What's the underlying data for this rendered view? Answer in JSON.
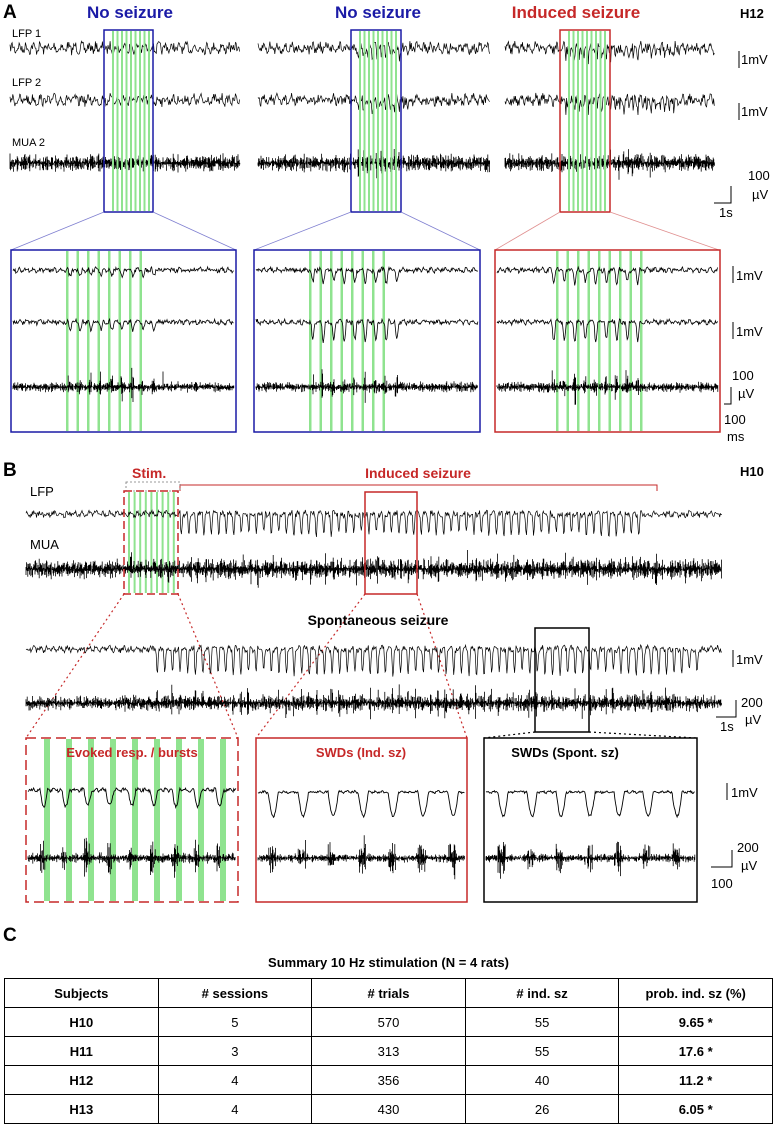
{
  "panel_a": {
    "label": "A",
    "subject": "H12",
    "columns": [
      {
        "title": "No seizure",
        "color": "#1a1aa6"
      },
      {
        "title": "No seizure",
        "color": "#1a1aa6"
      },
      {
        "title": "Induced seizure",
        "color": "#c62828"
      }
    ],
    "trace_labels": [
      "LFP 1",
      "LFP 2",
      "MUA 2"
    ],
    "scale_mv": "1mV",
    "scale_uv_value": "100",
    "scale_uv_unit": "µV",
    "scale_time": "1s",
    "zoom_scale_time_value": "100",
    "zoom_scale_time_unit": "ms"
  },
  "panel_b": {
    "label": "B",
    "subject": "H10",
    "stim_label": "Stim.",
    "induced_label": "Induced seizure",
    "trace_labels": [
      "LFP",
      "MUA"
    ],
    "spont_label": "Spontaneous seizure",
    "scale_mv": "1mV",
    "scale_uv_value": "200",
    "scale_uv_unit": "µV",
    "scale_time": "1s",
    "zoom_titles": [
      "Evoked resp. / bursts",
      "SWDs (Ind. sz)",
      "SWDs (Spont. sz)"
    ],
    "zoom_scale_time": "100"
  },
  "panel_c": {
    "label": "C",
    "caption": "Summary 10 Hz stimulation (N = 4 rats)",
    "headers": [
      "Subjects",
      "# sessions",
      "# trials",
      "# ind. sz",
      "prob. ind. sz (%)"
    ],
    "rows": [
      [
        "H10",
        "5",
        "570",
        "55",
        "9.65 *"
      ],
      [
        "H11",
        "3",
        "313",
        "55",
        "17.6 *"
      ],
      [
        "H12",
        "4",
        "356",
        "40",
        "11.2 *"
      ],
      [
        "H13",
        "4",
        "430",
        "26",
        "6.05 *"
      ]
    ]
  },
  "colors": {
    "blue": "#1a1aa6",
    "red": "#c62828",
    "green": "#8fe38f",
    "black": "#000000"
  }
}
